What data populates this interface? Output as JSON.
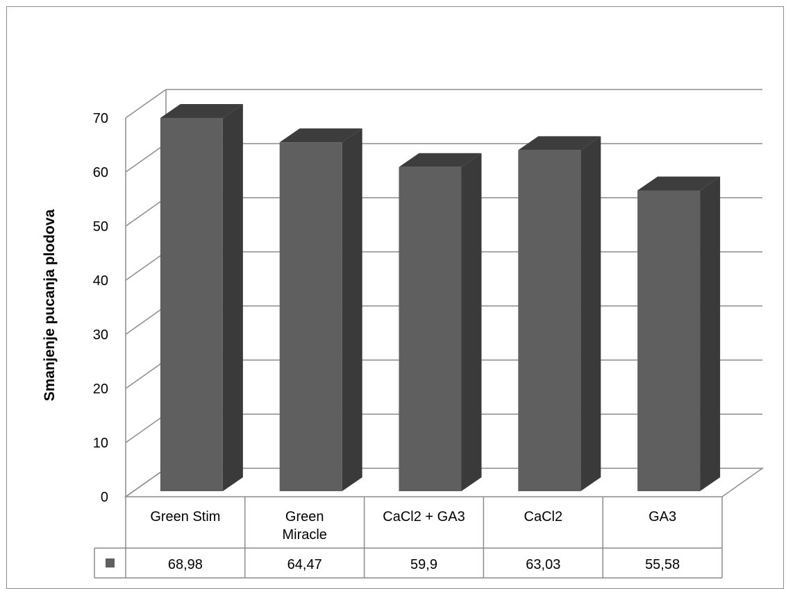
{
  "chart_data": {
    "type": "bar",
    "title": "",
    "xlabel": "",
    "ylabel": "Smanjenje pucanja plodova",
    "ylim": [
      0,
      70
    ],
    "yticks": [
      0,
      10,
      20,
      30,
      40,
      50,
      60,
      70
    ],
    "categories": [
      [
        "Green Stim"
      ],
      [
        "Green",
        "Miracle"
      ],
      [
        "CaCl2 + GA3"
      ],
      [
        "CaCl2"
      ],
      [
        "GA3"
      ]
    ],
    "series": [
      {
        "values": [
          68.98,
          64.47,
          59.9,
          63.03,
          55.58
        ],
        "labels": [
          "68,98",
          "64,47",
          "59,9",
          "63,03",
          "55,58"
        ]
      }
    ],
    "data_table": true,
    "grid": true,
    "style": "3d-column",
    "colors": {
      "front": "#5f5f5f",
      "top": "#3d3d3d",
      "side": "#3a3a3a",
      "grid": "#8c8c8c"
    }
  }
}
